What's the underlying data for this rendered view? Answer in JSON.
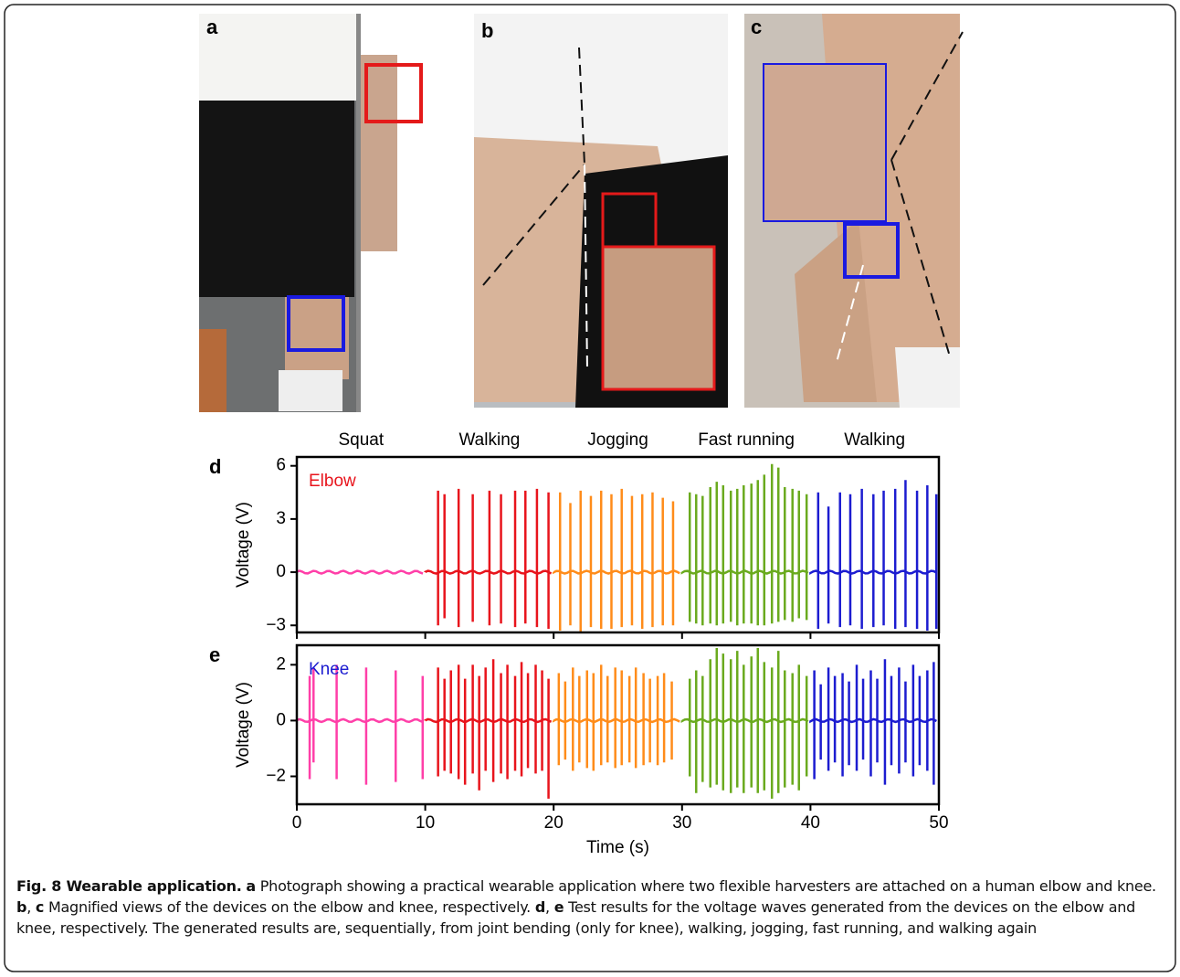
{
  "photos": [
    {
      "label": "a"
    },
    {
      "label": "b"
    },
    {
      "label": "c"
    }
  ],
  "chart_data": [
    {
      "type": "spike",
      "panel": "d",
      "trace_label": "Elbow",
      "trace_color": "#e8141c",
      "ylabel": "Voltage (V)",
      "ylim": [
        -3.4,
        6.5
      ],
      "yticks": [
        6,
        3,
        0,
        {
          "value": -3,
          "label": "−3"
        }
      ],
      "series": [
        {
          "name": "Squat",
          "color": "#ff3fa8",
          "x": [],
          "values": [],
          "lows": []
        },
        {
          "name": "Walking",
          "color": "#e8141c",
          "x": [
            11.0,
            11.5,
            12.6,
            13.7,
            15.0,
            15.9,
            17.0,
            17.8,
            18.7,
            19.6
          ],
          "values": [
            4.6,
            4.4,
            4.7,
            4.4,
            4.6,
            4.4,
            4.6,
            4.6,
            4.7,
            4.5
          ],
          "lows": [
            -3.0,
            -2.6,
            -3.1,
            -2.8,
            -3.0,
            -2.9,
            -3.1,
            -2.9,
            -3.1,
            -3.2
          ]
        },
        {
          "name": "Jogging",
          "color": "#ff8c1a",
          "x": [
            20.5,
            21.3,
            22.1,
            22.9,
            23.7,
            24.5,
            25.3,
            26.1,
            26.9,
            27.7,
            28.5,
            29.3
          ],
          "values": [
            4.5,
            3.9,
            4.6,
            4.3,
            4.6,
            4.4,
            4.7,
            4.3,
            4.4,
            4.5,
            4.2,
            4.0
          ],
          "lows": [
            -3.3,
            -3.0,
            -3.4,
            -3.1,
            -3.2,
            -3.2,
            -3.1,
            -3.0,
            -3.2,
            -3.1,
            -3.0,
            -3.0
          ]
        },
        {
          "name": "Fast running",
          "color": "#6aaa1e",
          "x": [
            30.6,
            31.1,
            31.6,
            32.2,
            32.7,
            33.2,
            33.8,
            34.3,
            34.8,
            35.4,
            35.9,
            36.4,
            37.0,
            37.5,
            38.0,
            38.6,
            39.1,
            39.7
          ],
          "values": [
            4.5,
            4.4,
            4.3,
            4.8,
            5.1,
            4.9,
            4.6,
            4.7,
            4.9,
            5.0,
            5.2,
            5.5,
            6.1,
            5.9,
            4.8,
            4.7,
            4.6,
            4.4
          ],
          "lows": [
            -2.8,
            -2.9,
            -3.0,
            -2.9,
            -3.0,
            -2.9,
            -2.8,
            -3.0,
            -2.9,
            -2.9,
            -3.0,
            -3.0,
            -2.9,
            -2.8,
            -2.7,
            -2.8,
            -2.6,
            -2.7
          ]
        },
        {
          "name": "Walking",
          "color": "#1c1cd0",
          "x": [
            40.6,
            41.4,
            42.3,
            43.1,
            44.0,
            44.9,
            45.7,
            46.6,
            47.4,
            48.3,
            49.1,
            49.8
          ],
          "values": [
            4.5,
            3.7,
            4.5,
            4.4,
            4.7,
            4.4,
            4.6,
            4.7,
            5.2,
            4.6,
            4.9,
            4.4
          ],
          "lows": [
            -3.2,
            -2.9,
            -3.1,
            -3.0,
            -3.2,
            -3.1,
            -3.0,
            -3.2,
            -3.1,
            -3.2,
            -3.3,
            -3.2
          ]
        }
      ]
    },
    {
      "type": "spike",
      "panel": "e",
      "trace_label": "Knee",
      "trace_color": "#1c1cd0",
      "ylabel": "Voltage (V)",
      "xlabel": "Time (s)",
      "xlim": [
        0,
        50
      ],
      "xticks": [
        0,
        10,
        20,
        30,
        40,
        50
      ],
      "ylim": [
        -3,
        2.7
      ],
      "yticks": [
        2,
        0,
        {
          "value": -2,
          "label": "−2"
        }
      ],
      "series": [
        {
          "color": "#ff3fa8",
          "x": [
            1.0,
            1.3,
            3.1,
            5.4,
            7.7,
            9.8
          ],
          "values": [
            1.6,
            1.9,
            2.0,
            1.9,
            1.8,
            1.6
          ],
          "lows": [
            -2.1,
            -1.5,
            -2.1,
            -2.3,
            -2.2,
            -2.1
          ]
        },
        {
          "color": "#e8141c",
          "x": [
            11.0,
            11.5,
            12.0,
            12.6,
            13.1,
            13.7,
            14.2,
            14.7,
            15.3,
            15.9,
            16.4,
            17.0,
            17.5,
            18.0,
            18.6,
            19.1,
            19.6
          ],
          "values": [
            1.9,
            1.5,
            1.8,
            2.0,
            1.5,
            2.0,
            1.6,
            1.9,
            2.2,
            1.7,
            2.0,
            1.6,
            2.1,
            1.7,
            2.0,
            1.8,
            1.5
          ],
          "lows": [
            -2.0,
            -1.8,
            -1.9,
            -2.1,
            -2.3,
            -1.9,
            -2.5,
            -1.8,
            -2.2,
            -1.9,
            -2.1,
            -1.8,
            -2.0,
            -1.7,
            -1.9,
            -1.8,
            -2.8
          ]
        },
        {
          "color": "#ff8c1a",
          "x": [
            20.4,
            20.9,
            21.5,
            22.0,
            22.6,
            23.1,
            23.7,
            24.2,
            24.8,
            25.3,
            25.9,
            26.4,
            27.0,
            27.5,
            28.1,
            28.6,
            29.2
          ],
          "values": [
            1.7,
            1.4,
            1.9,
            1.6,
            1.8,
            1.7,
            2.0,
            1.6,
            1.9,
            1.8,
            1.6,
            1.9,
            1.7,
            1.5,
            1.6,
            1.7,
            1.4
          ],
          "lows": [
            -1.6,
            -1.4,
            -1.8,
            -1.5,
            -1.7,
            -1.8,
            -1.6,
            -1.5,
            -1.7,
            -1.6,
            -1.5,
            -1.7,
            -1.6,
            -1.5,
            -1.6,
            -1.5,
            -1.4
          ]
        },
        {
          "color": "#6aaa1e",
          "x": [
            30.6,
            31.1,
            31.6,
            32.2,
            32.7,
            33.2,
            33.8,
            34.3,
            34.8,
            35.4,
            35.9,
            36.4,
            37.0,
            37.5,
            38.0,
            38.6,
            39.1,
            39.7
          ],
          "values": [
            1.5,
            1.8,
            1.6,
            2.2,
            2.6,
            2.4,
            2.2,
            2.5,
            2.0,
            2.3,
            2.6,
            2.1,
            1.9,
            2.5,
            1.8,
            1.7,
            2.0,
            1.6
          ],
          "lows": [
            -2.0,
            -2.6,
            -2.2,
            -2.4,
            -2.3,
            -2.5,
            -2.6,
            -2.4,
            -2.6,
            -2.4,
            -2.6,
            -2.5,
            -2.8,
            -2.6,
            -2.4,
            -2.3,
            -2.5,
            -2.0
          ]
        },
        {
          "color": "#1c1cd0",
          "x": [
            40.3,
            40.8,
            41.4,
            41.9,
            42.5,
            43.0,
            43.6,
            44.1,
            44.7,
            45.2,
            45.8,
            46.3,
            46.9,
            47.4,
            48.0,
            48.5,
            49.1,
            49.6
          ],
          "values": [
            1.8,
            1.3,
            1.9,
            1.6,
            1.7,
            1.4,
            2.0,
            1.5,
            1.8,
            1.5,
            2.2,
            1.6,
            1.9,
            1.4,
            2.0,
            1.6,
            1.8,
            2.1
          ],
          "lows": [
            -2.1,
            -1.4,
            -1.8,
            -1.5,
            -2.0,
            -1.6,
            -1.8,
            -1.4,
            -2.0,
            -1.5,
            -2.3,
            -1.6,
            -1.9,
            -1.5,
            -2.0,
            -1.6,
            -1.8,
            -2.3
          ]
        }
      ]
    }
  ],
  "caption": {
    "parts": [
      "Fig. 8 Wearable application.",
      "a",
      " Photograph showing a practical wearable application where two flexible harvesters are attached on a human elbow and knee. ",
      "b",
      ", ",
      "c",
      " Magnified views of the devices on the elbow and knee, respectively. ",
      "d",
      ", ",
      "e",
      " Test results for the voltage waves generated from the devices on the elbow and knee, respectively. The generated results are, sequentially, from joint bending (only for knee), walking, jogging, fast running, and walking again"
    ]
  }
}
